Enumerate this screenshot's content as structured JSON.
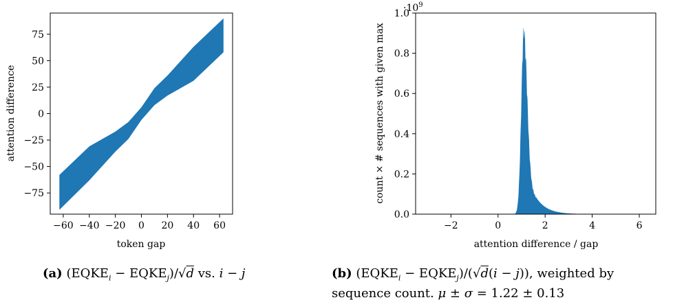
{
  "chart_data": [
    {
      "type": "scatter",
      "xlabel": "token gap",
      "ylabel": "attention difference",
      "xlim": [
        -70,
        70
      ],
      "ylim": [
        -95,
        95
      ],
      "xticks": [
        -60,
        -40,
        -20,
        0,
        20,
        40,
        60
      ],
      "yticks": [
        -75,
        -50,
        -25,
        0,
        25,
        50,
        75
      ],
      "xtick_labels": [
        "−60",
        "−40",
        "−20",
        "0",
        "20",
        "40",
        "60"
      ],
      "ytick_labels": [
        "−75",
        "−50",
        "−25",
        "0",
        "25",
        "50",
        "75"
      ],
      "series": [
        {
          "color": "#1f77b4",
          "x_range": [
            -63,
            63
          ],
          "lower_band": [
            [
              -63,
              -91
            ],
            [
              -40,
              -63
            ],
            [
              -20,
              -36
            ],
            [
              -10,
              -24
            ],
            [
              0,
              -6
            ],
            [
              10,
              8
            ],
            [
              20,
              17
            ],
            [
              40,
              31
            ],
            [
              63,
              58
            ]
          ],
          "upper_band": [
            [
              -63,
              -58
            ],
            [
              -40,
              -31
            ],
            [
              -20,
              -17
            ],
            [
              -10,
              -8
            ],
            [
              0,
              6
            ],
            [
              10,
              24
            ],
            [
              20,
              36
            ],
            [
              40,
              63
            ],
            [
              63,
              90
            ]
          ]
        }
      ],
      "caption_label": "(a)",
      "caption_text": "(EQKE_i − EQKE_j)/√d vs. i − j"
    },
    {
      "type": "bar",
      "xlabel": "attention difference / gap",
      "ylabel": "count × # sequences with given max",
      "y_scale_label": "·10^9",
      "xlim": [
        -3.5,
        6.7
      ],
      "ylim": [
        0,
        1.0
      ],
      "xticks": [
        -2,
        0,
        2,
        4,
        6
      ],
      "yticks": [
        0.0,
        0.2,
        0.4,
        0.6,
        0.8,
        1.0
      ],
      "xtick_labels": [
        "−2",
        "0",
        "2",
        "4",
        "6"
      ],
      "ytick_labels": [
        "0.0",
        "0.2",
        "0.4",
        "0.6",
        "0.8",
        "1.0"
      ],
      "series": [
        {
          "color": "#1f77b4",
          "x_range": [
            -3.2,
            6.5
          ],
          "peak_x": 1.1,
          "peak_y": 0.95,
          "mean": 1.22,
          "std": 0.13
        }
      ],
      "caption_label": "(b)",
      "caption_text_line1": "(EQKE_i − EQKE_j)/(√d(i − j)), weighted by",
      "caption_text_line2": "sequence count. μ ± σ = 1.22 ± 0.13"
    }
  ]
}
